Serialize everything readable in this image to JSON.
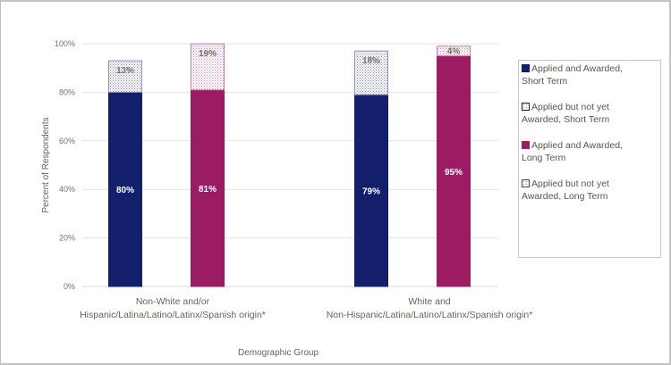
{
  "chart_data": {
    "type": "bar",
    "stacked": true,
    "title": "",
    "xlabel": "Demographic Group",
    "ylabel": "Percent of Respondents",
    "ylim": [
      0,
      100
    ],
    "yticks": [
      "0%",
      "20%",
      "40%",
      "60%",
      "80%",
      "100%"
    ],
    "grid": true,
    "legend_position": "right",
    "categories": [
      [
        "Non-White and/or",
        "Hispanic/Latina/Latino/Latinx/Spanish origin*"
      ],
      [
        "White and",
        "Non-Hispanic/Latina/Latino/Latinx/Spanish origin*"
      ]
    ],
    "series": [
      {
        "name": "Applied and Awarded, Short Term",
        "legend_lines": [
          "Applied and Awarded,",
          "Short Term"
        ],
        "group": "short",
        "pattern": false,
        "color": "#141f6b",
        "values": [
          80,
          79
        ],
        "labels": [
          "80%",
          "79%"
        ]
      },
      {
        "name": "Applied but not yet Awarded, Short Term",
        "legend_lines": [
          "Applied but not yet",
          "Awarded, Short Term"
        ],
        "group": "short",
        "pattern": true,
        "color": "#141f6b",
        "values": [
          13,
          18
        ],
        "labels": [
          "13%",
          "18%"
        ]
      },
      {
        "name": "Applied and Awarded, Long Term",
        "legend_lines": [
          "Applied and Awarded,",
          "Long Term"
        ],
        "group": "long",
        "pattern": false,
        "color": "#9b1c62",
        "values": [
          81,
          95
        ],
        "labels": [
          "81%",
          "95%"
        ]
      },
      {
        "name": "Applied but not yet Awarded, Long Term",
        "legend_lines": [
          "Applied but not yet",
          "Awarded, Long Term"
        ],
        "group": "long",
        "pattern": true,
        "color": "#9b1c62",
        "values": [
          19,
          4
        ],
        "labels": [
          "19%",
          "4%"
        ]
      }
    ]
  }
}
